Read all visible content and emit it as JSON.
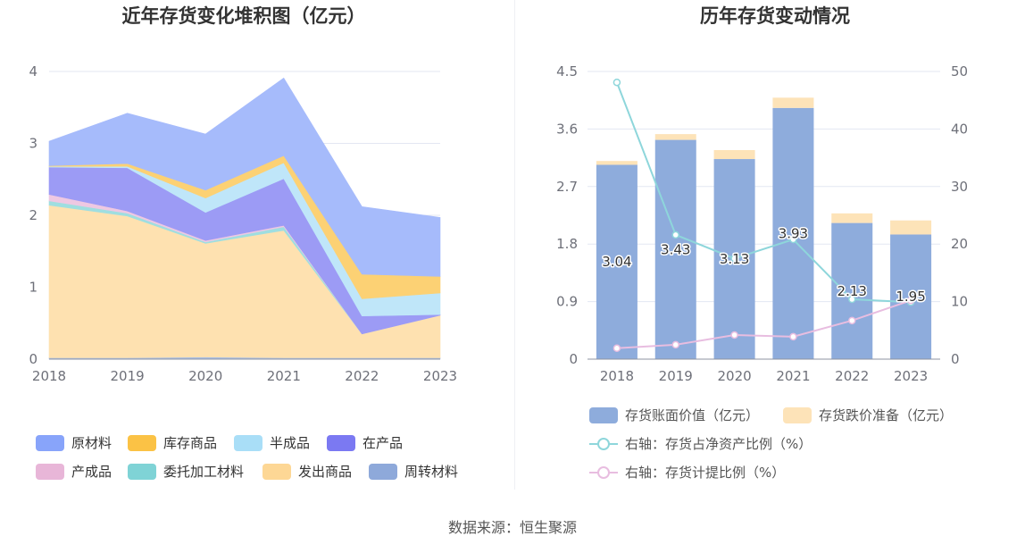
{
  "footer": {
    "source": "数据来源：恒生聚源"
  },
  "chart_data": [
    {
      "type": "area",
      "stacked": true,
      "title": "近年存货变化堆积图（亿元）",
      "categories": [
        "2018",
        "2019",
        "2020",
        "2021",
        "2022",
        "2023"
      ],
      "y_ticks": [
        "0",
        "1",
        "2",
        "3",
        "4"
      ],
      "ylim": [
        0,
        4
      ],
      "grid": true,
      "legend": "bottom",
      "series": [
        {
          "name": "原材料",
          "color": "#88a4fa",
          "values": [
            0.34,
            0.7,
            0.78,
            1.08,
            0.94,
            0.82
          ]
        },
        {
          "name": "库存商品",
          "color": "#fbc245",
          "values": [
            0.01,
            0.04,
            0.11,
            0.1,
            0.34,
            0.23
          ]
        },
        {
          "name": "半成品",
          "color": "#a9def7",
          "values": [
            0.01,
            0.02,
            0.2,
            0.22,
            0.24,
            0.3
          ]
        },
        {
          "name": "在产品",
          "color": "#7b79f2",
          "values": [
            0.38,
            0.6,
            0.39,
            0.65,
            0.25,
            0.01
          ]
        },
        {
          "name": "产成品",
          "color": "#e8b6d8",
          "values": [
            0.09,
            0.03,
            0.02,
            0.02,
            0.0,
            0.0
          ]
        },
        {
          "name": "委托加工材料",
          "color": "#7fd3d6",
          "values": [
            0.06,
            0.04,
            0.02,
            0.05,
            0.0,
            0.0
          ]
        },
        {
          "name": "发出商品",
          "color": "#fdd795",
          "values": [
            2.12,
            1.97,
            1.58,
            1.77,
            0.33,
            0.59
          ]
        },
        {
          "name": "周转材料",
          "color": "#8ea9da",
          "values": [
            0.02,
            0.02,
            0.03,
            0.02,
            0.02,
            0.02
          ]
        }
      ]
    },
    {
      "type": "bar",
      "title": "历年存货变动情况",
      "categories": [
        "2018",
        "2019",
        "2020",
        "2021",
        "2022",
        "2023"
      ],
      "y_ticks_left": [
        "0",
        "0.9",
        "1.8",
        "2.7",
        "3.6",
        "4.5"
      ],
      "ylim_left": [
        0,
        4.5
      ],
      "y_ticks_right": [
        "0",
        "10",
        "20",
        "30",
        "40",
        "50"
      ],
      "ylim_right": [
        0,
        50
      ],
      "grid": true,
      "legend": "bottom",
      "bar_series": [
        {
          "name": "存货账面价值（亿元）",
          "color": "#8eacdc",
          "values": [
            3.04,
            3.43,
            3.13,
            3.93,
            2.13,
            1.95
          ],
          "labels": [
            "3.04",
            "3.43",
            "3.13",
            "3.93",
            "2.13",
            "1.95"
          ]
        },
        {
          "name": "存货跌价准备（亿元）",
          "color": "#fde3b8",
          "values": [
            0.06,
            0.09,
            0.14,
            0.16,
            0.15,
            0.22
          ]
        }
      ],
      "line_series": [
        {
          "name": "右轴：存货占净资产比例（%）",
          "color": "#8ed6db",
          "axis": "right",
          "values": [
            48.1,
            21.6,
            17.5,
            20.8,
            10.4,
            9.9
          ]
        },
        {
          "name": "右轴：存货计提比例（%）",
          "color": "#e8bde0",
          "axis": "right",
          "values": [
            1.9,
            2.5,
            4.2,
            3.9,
            6.7,
            10.2
          ]
        }
      ]
    }
  ]
}
